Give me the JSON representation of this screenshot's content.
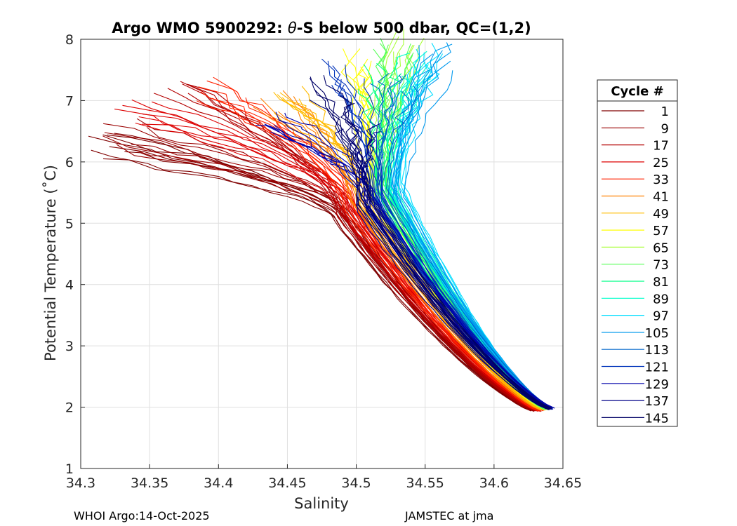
{
  "chart_data": {
    "type": "line",
    "title_prefix": "Argo WMO 5900292: ",
    "title_theta": "θ",
    "title_suffix": "-S below 500 dbar,  QC=(1,2)",
    "xlabel": "Salinity",
    "ylabel": "Potential Temperature (˚C)",
    "xlim": [
      34.3,
      34.65
    ],
    "ylim": [
      1,
      8
    ],
    "xticks": [
      "34.3",
      "34.35",
      "34.4",
      "34.45",
      "34.5",
      "34.55",
      "34.6",
      "34.65"
    ],
    "yticks": [
      "1",
      "2",
      "3",
      "4",
      "5",
      "6",
      "7",
      "8"
    ],
    "grid": true,
    "legend_title": "Cycle #",
    "legend_placement": "right, outside axes",
    "series": [
      {
        "name": "1",
        "color": "#800000",
        "top": [
          34.32,
          6.3
        ],
        "mid": [
          34.49,
          5.1
        ],
        "bottom": [
          34.628,
          1.95
        ]
      },
      {
        "name": "9",
        "color": "#9a0000",
        "top": [
          34.33,
          6.45
        ],
        "mid": [
          34.49,
          5.15
        ],
        "bottom": [
          34.63,
          1.94
        ]
      },
      {
        "name": "17",
        "color": "#b30000",
        "top": [
          34.37,
          7.05
        ],
        "mid": [
          34.49,
          5.2
        ],
        "bottom": [
          34.632,
          1.95
        ]
      },
      {
        "name": "25",
        "color": "#dd0000",
        "top": [
          34.34,
          6.78
        ],
        "mid": [
          34.495,
          5.25
        ],
        "bottom": [
          34.633,
          1.94
        ]
      },
      {
        "name": "33",
        "color": "#ff2200",
        "top": [
          34.4,
          7.2
        ],
        "mid": [
          34.495,
          5.3
        ],
        "bottom": [
          34.634,
          1.95
        ]
      },
      {
        "name": "41",
        "color": "#ff8000",
        "top": [
          34.44,
          6.9
        ],
        "mid": [
          34.5,
          5.35
        ],
        "bottom": [
          34.635,
          1.96
        ]
      },
      {
        "name": "49",
        "color": "#ffbb00",
        "top": [
          34.45,
          7.0
        ],
        "mid": [
          34.505,
          5.4
        ],
        "bottom": [
          34.636,
          1.96
        ]
      },
      {
        "name": "57",
        "color": "#ffff00",
        "top": [
          34.5,
          7.6
        ],
        "mid": [
          34.51,
          5.45
        ],
        "bottom": [
          34.637,
          1.97
        ]
      },
      {
        "name": "65",
        "color": "#aaff3c",
        "top": [
          34.54,
          7.95
        ],
        "mid": [
          34.515,
          5.5
        ],
        "bottom": [
          34.638,
          1.97
        ]
      },
      {
        "name": "73",
        "color": "#55ff55",
        "top": [
          34.53,
          7.8
        ],
        "mid": [
          34.52,
          5.55
        ],
        "bottom": [
          34.638,
          1.98
        ]
      },
      {
        "name": "81",
        "color": "#00ff88",
        "top": [
          34.52,
          7.4
        ],
        "mid": [
          34.52,
          5.6
        ],
        "bottom": [
          34.639,
          1.98
        ]
      },
      {
        "name": "89",
        "color": "#00ffcc",
        "top": [
          34.54,
          7.6
        ],
        "mid": [
          34.525,
          5.6
        ],
        "bottom": [
          34.639,
          1.98
        ]
      },
      {
        "name": "97",
        "color": "#00ddff",
        "top": [
          34.555,
          7.7
        ],
        "mid": [
          34.53,
          5.55
        ],
        "bottom": [
          34.64,
          1.98
        ]
      },
      {
        "name": "105",
        "color": "#0099ee",
        "top": [
          34.558,
          7.75
        ],
        "mid": [
          34.53,
          5.5
        ],
        "bottom": [
          34.64,
          1.99
        ]
      },
      {
        "name": "113",
        "color": "#0066cc",
        "top": [
          34.53,
          7.3
        ],
        "mid": [
          34.52,
          5.45
        ],
        "bottom": [
          34.641,
          1.98
        ]
      },
      {
        "name": "121",
        "color": "#0033bb",
        "top": [
          34.49,
          7.5
        ],
        "mid": [
          34.515,
          5.4
        ],
        "bottom": [
          34.641,
          1.98
        ]
      },
      {
        "name": "129",
        "color": "#0000aa",
        "top": [
          34.44,
          6.6
        ],
        "mid": [
          34.51,
          5.35
        ],
        "bottom": [
          34.642,
          1.98
        ]
      },
      {
        "name": "137",
        "color": "#000088",
        "top": [
          34.5,
          6.4
        ],
        "mid": [
          34.505,
          5.3
        ],
        "bottom": [
          34.641,
          1.97
        ]
      },
      {
        "name": "145",
        "color": "#000066",
        "top": [
          34.48,
          7.2
        ],
        "mid": [
          34.505,
          5.35
        ],
        "bottom": [
          34.64,
          1.97
        ]
      }
    ]
  },
  "footer": {
    "left": "WHOI Argo:14-Oct-2025",
    "right": "JAMSTEC at jma"
  }
}
